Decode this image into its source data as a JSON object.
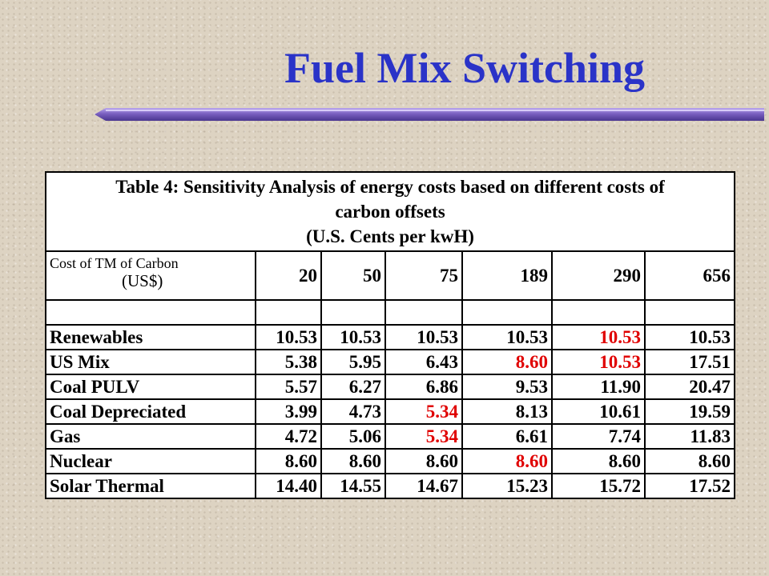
{
  "title": "Fuel Mix Switching",
  "table": {
    "caption_line1": "Table 4: Sensitivity Analysis of energy costs based on different costs of",
    "caption_line2": "carbon offsets",
    "caption_line3": "(U.S. Cents per kwH)",
    "cost_label_line1": "Cost of TM of Carbon",
    "cost_label_line2": "(US$)",
    "cost_columns": [
      "20",
      "50",
      "75",
      "189",
      "290",
      "656"
    ],
    "rows": [
      {
        "label": "Renewables",
        "values": [
          "10.53",
          "10.53",
          "10.53",
          "10.53",
          "10.53",
          "10.53"
        ],
        "highlight": [
          false,
          false,
          false,
          false,
          true,
          false
        ]
      },
      {
        "label": "US Mix",
        "values": [
          "5.38",
          "5.95",
          "6.43",
          "8.60",
          "10.53",
          "17.51"
        ],
        "highlight": [
          false,
          false,
          false,
          true,
          true,
          false
        ]
      },
      {
        "label": "Coal PULV",
        "values": [
          "5.57",
          "6.27",
          "6.86",
          "9.53",
          "11.90",
          "20.47"
        ],
        "highlight": [
          false,
          false,
          false,
          false,
          false,
          false
        ]
      },
      {
        "label": "Coal Depreciated",
        "values": [
          "3.99",
          "4.73",
          "5.34",
          "8.13",
          "10.61",
          "19.59"
        ],
        "highlight": [
          false,
          false,
          true,
          false,
          false,
          false
        ]
      },
      {
        "label": "Gas",
        "values": [
          "4.72",
          "5.06",
          "5.34",
          "6.61",
          "7.74",
          "11.83"
        ],
        "highlight": [
          false,
          false,
          true,
          false,
          false,
          false
        ]
      },
      {
        "label": "Nuclear",
        "values": [
          "8.60",
          "8.60",
          "8.60",
          "8.60",
          "8.60",
          "8.60"
        ],
        "highlight": [
          false,
          false,
          false,
          true,
          false,
          false
        ]
      },
      {
        "label": "Solar Thermal",
        "values": [
          "14.40",
          "14.55",
          "14.67",
          "15.23",
          "15.72",
          "17.52"
        ],
        "highlight": [
          false,
          false,
          false,
          false,
          false,
          false
        ]
      }
    ]
  },
  "colors": {
    "title": "#2a33c8",
    "highlight": "#e00000",
    "rule": "#7a5fc0"
  }
}
